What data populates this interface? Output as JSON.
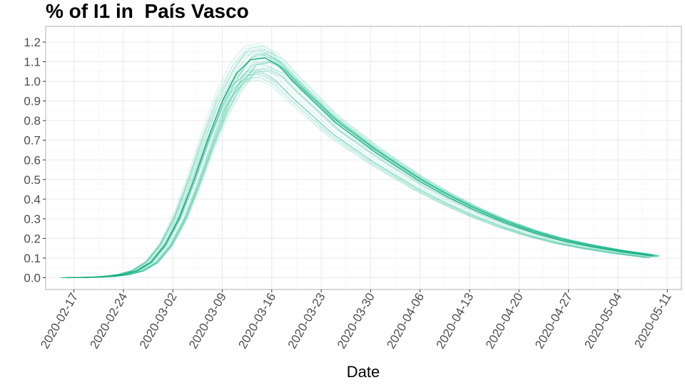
{
  "chart_data": {
    "type": "line",
    "title": "% of I1 in  País Vasco",
    "xlabel": "Date",
    "ylabel": "",
    "x_tick_labels": [
      "2020-02-17",
      "2020-02-24",
      "2020-03-02",
      "2020-03-09",
      "2020-03-16",
      "2020-03-23",
      "2020-03-30",
      "2020-04-06",
      "2020-04-13",
      "2020-04-20",
      "2020-04-27",
      "2020-05-04",
      "2020-05-11"
    ],
    "y_tick_labels": [
      "0.0",
      "0.1",
      "0.2",
      "0.3",
      "0.4",
      "0.5",
      "0.6",
      "0.7",
      "0.8",
      "0.9",
      "1.0",
      "1.1",
      "1.2"
    ],
    "xlim": [
      "2020-02-13",
      "2020-05-13"
    ],
    "ylim": [
      -0.06,
      1.28
    ],
    "grid": true,
    "colors": {
      "series": "#1bb98f",
      "main": "#0fa87e",
      "grid": "#ebebeb",
      "panel_border": "#b3b3b3"
    },
    "series": [
      {
        "role": "central estimate",
        "x": [
          "2020-02-16",
          "2020-02-18",
          "2020-02-20",
          "2020-02-22",
          "2020-02-24",
          "2020-02-26",
          "2020-02-28",
          "2020-03-01",
          "2020-03-03",
          "2020-03-05",
          "2020-03-07",
          "2020-03-09",
          "2020-03-11",
          "2020-03-13",
          "2020-03-15",
          "2020-03-17",
          "2020-03-19",
          "2020-03-21",
          "2020-03-23",
          "2020-03-25",
          "2020-03-28",
          "2020-03-31",
          "2020-04-03",
          "2020-04-06",
          "2020-04-10",
          "2020-04-14",
          "2020-04-18",
          "2020-04-22",
          "2020-04-26",
          "2020-04-30",
          "2020-05-04",
          "2020-05-09"
        ],
        "values": [
          0.0,
          0.001,
          0.003,
          0.007,
          0.016,
          0.036,
          0.08,
          0.17,
          0.31,
          0.5,
          0.71,
          0.9,
          1.04,
          1.11,
          1.12,
          1.08,
          1.0,
          0.93,
          0.86,
          0.79,
          0.71,
          0.63,
          0.56,
          0.49,
          0.41,
          0.34,
          0.28,
          0.23,
          0.19,
          0.16,
          0.135,
          0.11
        ]
      }
    ],
    "ensemble": {
      "count": 40,
      "peak_range": [
        0.94,
        1.22
      ],
      "tail_range": [
        0.1,
        0.12
      ]
    }
  }
}
